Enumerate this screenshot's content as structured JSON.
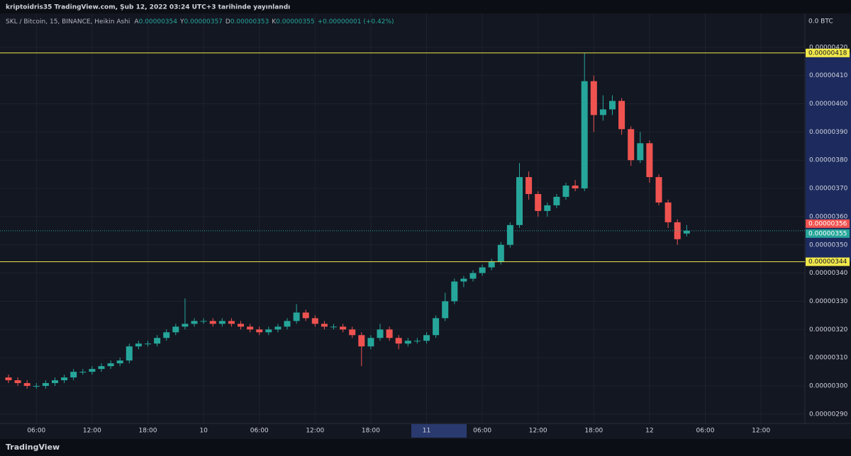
{
  "header": {
    "publisher": "kriptoidris35 TradingView.com, Şub 12, 2022 03:24 UTC+3 tarihinde yayınlandı",
    "brand": "TradingView"
  },
  "chart_data": {
    "type": "candlestick",
    "title": "SKL / Bitcoin, 15, BINANCE, Heikin Ashi",
    "legend_values": [
      {
        "key": "A",
        "text": "0.00000354"
      },
      {
        "key": "Y",
        "text": "0.00000357"
      },
      {
        "key": "D",
        "text": "0.00000353"
      },
      {
        "key": "K",
        "text": "0.00000355"
      }
    ],
    "change": "+0.00000001 (+0.42%)",
    "axis_unit": "0.0 BTC",
    "up_color": "#26a69a",
    "down_color": "#ef5350",
    "grid": true,
    "open": [
      3.03e-06,
      3.02e-06,
      3.01e-06,
      3e-06,
      3e-06,
      3.01e-06,
      3.02e-06,
      3.03e-06,
      3.05e-06,
      3.05e-06,
      3.06e-06,
      3.07e-06,
      3.08e-06,
      3.09e-06,
      3.14e-06,
      3.15e-06,
      3.15e-06,
      3.17e-06,
      3.19e-06,
      3.21e-06,
      3.22e-06,
      3.23e-06,
      3.23e-06,
      3.22e-06,
      3.23e-06,
      3.22e-06,
      3.21e-06,
      3.2e-06,
      3.19e-06,
      3.2e-06,
      3.21e-06,
      3.23e-06,
      3.26e-06,
      3.24e-06,
      3.22e-06,
      3.21e-06,
      3.21e-06,
      3.2e-06,
      3.18e-06,
      3.14e-06,
      3.17e-06,
      3.2e-06,
      3.17e-06,
      3.15e-06,
      3.16e-06,
      3.16e-06,
      3.18e-06,
      3.24e-06,
      3.3e-06,
      3.37e-06,
      3.38e-06,
      3.4e-06,
      3.42e-06,
      3.44e-06,
      3.5e-06,
      3.57e-06,
      3.74e-06,
      3.68e-06,
      3.62e-06,
      3.64e-06,
      3.67e-06,
      3.71e-06,
      3.7e-06,
      4.08e-06,
      3.96e-06,
      3.98e-06,
      4.01e-06,
      3.91e-06,
      3.8e-06,
      3.86e-06,
      3.74e-06,
      3.65e-06,
      3.58e-06,
      3.54e-06
    ],
    "high": [
      3.04e-06,
      3.03e-06,
      3.02e-06,
      3.01e-06,
      3.02e-06,
      3.03e-06,
      3.04e-06,
      3.06e-06,
      3.06e-06,
      3.07e-06,
      3.08e-06,
      3.09e-06,
      3.1e-06,
      3.15e-06,
      3.16e-06,
      3.16e-06,
      3.18e-06,
      3.2e-06,
      3.22e-06,
      3.31e-06,
      3.24e-06,
      3.24e-06,
      3.24e-06,
      3.24e-06,
      3.24e-06,
      3.23e-06,
      3.22e-06,
      3.21e-06,
      3.21e-06,
      3.22e-06,
      3.24e-06,
      3.29e-06,
      3.27e-06,
      3.25e-06,
      3.23e-06,
      3.22e-06,
      3.22e-06,
      3.21e-06,
      3.19e-06,
      3.18e-06,
      3.22e-06,
      3.21e-06,
      3.18e-06,
      3.17e-06,
      3.17e-06,
      3.19e-06,
      3.25e-06,
      3.33e-06,
      3.38e-06,
      3.39e-06,
      3.41e-06,
      3.43e-06,
      3.45e-06,
      3.51e-06,
      3.58e-06,
      3.79e-06,
      3.76e-06,
      3.69e-06,
      3.65e-06,
      3.68e-06,
      3.72e-06,
      3.73e-06,
      4.18e-06,
      4.1e-06,
      4.03e-06,
      4.03e-06,
      4.02e-06,
      3.92e-06,
      3.9e-06,
      3.87e-06,
      3.75e-06,
      3.66e-06,
      3.59e-06,
      3.57e-06
    ],
    "low": [
      3.01e-06,
      3e-06,
      2.99e-06,
      2.99e-06,
      2.99e-06,
      3e-06,
      3.01e-06,
      3.02e-06,
      3.04e-06,
      3.04e-06,
      3.05e-06,
      3.06e-06,
      3.07e-06,
      3.08e-06,
      3.13e-06,
      3.14e-06,
      3.14e-06,
      3.16e-06,
      3.18e-06,
      3.2e-06,
      3.21e-06,
      3.22e-06,
      3.21e-06,
      3.21e-06,
      3.21e-06,
      3.2e-06,
      3.19e-06,
      3.18e-06,
      3.18e-06,
      3.19e-06,
      3.2e-06,
      3.22e-06,
      3.23e-06,
      3.21e-06,
      3.2e-06,
      3.2e-06,
      3.19e-06,
      3.17e-06,
      3.07e-06,
      3.13e-06,
      3.16e-06,
      3.16e-06,
      3.13e-06,
      3.14e-06,
      3.15e-06,
      3.15e-06,
      3.17e-06,
      3.23e-06,
      3.29e-06,
      3.35e-06,
      3.37e-06,
      3.39e-06,
      3.41e-06,
      3.43e-06,
      3.49e-06,
      3.56e-06,
      3.66e-06,
      3.6e-06,
      3.6e-06,
      3.63e-06,
      3.66e-06,
      3.69e-06,
      3.69e-06,
      3.9e-06,
      3.94e-06,
      3.96e-06,
      3.89e-06,
      3.78e-06,
      3.79e-06,
      3.72e-06,
      3.64e-06,
      3.56e-06,
      3.5e-06,
      3.53e-06
    ],
    "close": [
      3.02e-06,
      3.01e-06,
      3e-06,
      3e-06,
      3.01e-06,
      3.02e-06,
      3.03e-06,
      3.05e-06,
      3.05e-06,
      3.06e-06,
      3.07e-06,
      3.08e-06,
      3.09e-06,
      3.14e-06,
      3.15e-06,
      3.15e-06,
      3.17e-06,
      3.19e-06,
      3.21e-06,
      3.22e-06,
      3.23e-06,
      3.23e-06,
      3.22e-06,
      3.23e-06,
      3.22e-06,
      3.21e-06,
      3.2e-06,
      3.19e-06,
      3.2e-06,
      3.21e-06,
      3.23e-06,
      3.26e-06,
      3.24e-06,
      3.22e-06,
      3.21e-06,
      3.21e-06,
      3.2e-06,
      3.18e-06,
      3.14e-06,
      3.17e-06,
      3.2e-06,
      3.17e-06,
      3.15e-06,
      3.16e-06,
      3.16e-06,
      3.18e-06,
      3.24e-06,
      3.3e-06,
      3.37e-06,
      3.38e-06,
      3.4e-06,
      3.42e-06,
      3.44e-06,
      3.5e-06,
      3.57e-06,
      3.74e-06,
      3.68e-06,
      3.62e-06,
      3.64e-06,
      3.67e-06,
      3.71e-06,
      3.7e-06,
      4.08e-06,
      3.96e-06,
      3.98e-06,
      4.01e-06,
      3.91e-06,
      3.8e-06,
      3.86e-06,
      3.74e-06,
      3.65e-06,
      3.58e-06,
      3.52e-06,
      3.55e-06
    ],
    "xticks": [
      "06:00",
      "12:00",
      "18:00",
      "10",
      "06:00",
      "12:00",
      "18:00",
      "11",
      "06:00",
      "12:00",
      "18:00",
      "12",
      "06:00",
      "12:00"
    ],
    "ylim": [
      2.867e-06,
      4.32e-06
    ],
    "yticks": [
      {
        "value": 2.9e-06,
        "label": "0.00000290"
      },
      {
        "value": 3e-06,
        "label": "0.00000300"
      },
      {
        "value": 3.1e-06,
        "label": "0.00000310"
      },
      {
        "value": 3.2e-06,
        "label": "0.00000320"
      },
      {
        "value": 3.3e-06,
        "label": "0.00000330"
      },
      {
        "value": 3.4e-06,
        "label": "0.00000340"
      },
      {
        "value": 3.5e-06,
        "label": "0.00000350"
      },
      {
        "value": 3.6e-06,
        "label": "0.00000360"
      },
      {
        "value": 3.7e-06,
        "label": "0.00000370"
      },
      {
        "value": 3.8e-06,
        "label": "0.00000380"
      },
      {
        "value": 3.9e-06,
        "label": "0.00000390"
      },
      {
        "value": 4e-06,
        "label": "0.00000400"
      },
      {
        "value": 4.1e-06,
        "label": "0.00000410"
      },
      {
        "value": 4.2e-06,
        "label": "0.00000420"
      }
    ],
    "price_lines": [
      {
        "value": 4.18e-06,
        "label": "0.00000418",
        "color": "#f2e84b"
      },
      {
        "value": 3.44e-06,
        "label": "0.00000344",
        "color": "#f2e84b"
      }
    ],
    "price_tags": [
      {
        "value": 3.56e-06,
        "label": "0.00000356",
        "color": "#ef5350"
      },
      {
        "value": 3.55e-06,
        "label": "0.00000355",
        "color": "#26a69a"
      }
    ]
  }
}
